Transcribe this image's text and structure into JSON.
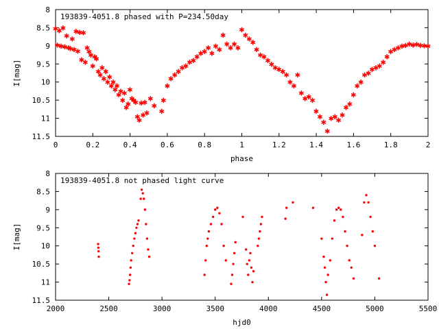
{
  "chart_data": [
    {
      "type": "scatter",
      "title": "193839-4051.8 phased with P=234.50day",
      "xlabel": "phase",
      "ylabel": "I[mag]",
      "xlim": [
        0,
        2
      ],
      "ylim": [
        11.5,
        8
      ],
      "y_inverted": true,
      "xticks": [
        "0",
        "0.2",
        "0.4",
        "0.6",
        "0.8",
        "1",
        "1.2",
        "1.4",
        "1.6",
        "1.8",
        "2"
      ],
      "yticks": [
        "8",
        "8.5",
        "9",
        "9.5",
        "10",
        "10.5",
        "11",
        "11.5"
      ],
      "marker": "star",
      "color": "#ff0000",
      "points": [
        [
          0.0,
          8.52
        ],
        [
          0.01,
          8.97
        ],
        [
          0.02,
          8.58
        ],
        [
          0.03,
          9.0
        ],
        [
          0.04,
          8.5
        ],
        [
          0.05,
          9.02
        ],
        [
          0.06,
          8.72
        ],
        [
          0.07,
          9.05
        ],
        [
          0.08,
          9.07
        ],
        [
          0.09,
          8.8
        ],
        [
          0.1,
          9.1
        ],
        [
          0.11,
          8.6
        ],
        [
          0.12,
          9.14
        ],
        [
          0.13,
          8.62
        ],
        [
          0.14,
          9.38
        ],
        [
          0.15,
          8.63
        ],
        [
          0.16,
          9.45
        ],
        [
          0.17,
          9.05
        ],
        [
          0.18,
          9.15
        ],
        [
          0.19,
          9.25
        ],
        [
          0.2,
          9.55
        ],
        [
          0.21,
          9.3
        ],
        [
          0.22,
          9.35
        ],
        [
          0.23,
          9.7
        ],
        [
          0.24,
          9.8
        ],
        [
          0.25,
          9.6
        ],
        [
          0.26,
          9.9
        ],
        [
          0.27,
          9.7
        ],
        [
          0.28,
          10.0
        ],
        [
          0.29,
          9.85
        ],
        [
          0.3,
          10.1
        ],
        [
          0.31,
          10.0
        ],
        [
          0.32,
          10.2
        ],
        [
          0.33,
          10.1
        ],
        [
          0.34,
          10.35
        ],
        [
          0.35,
          10.25
        ],
        [
          0.36,
          10.5
        ],
        [
          0.37,
          10.3
        ],
        [
          0.38,
          10.7
        ],
        [
          0.39,
          10.6
        ],
        [
          0.4,
          10.2
        ],
        [
          0.41,
          10.45
        ],
        [
          0.42,
          10.5
        ],
        [
          0.43,
          10.55
        ],
        [
          0.44,
          10.95
        ],
        [
          0.45,
          11.05
        ],
        [
          0.46,
          10.57
        ],
        [
          0.47,
          10.9
        ],
        [
          0.48,
          10.55
        ],
        [
          0.49,
          10.85
        ],
        [
          0.51,
          10.45
        ],
        [
          0.53,
          10.65
        ],
        [
          0.57,
          10.8
        ],
        [
          0.58,
          10.5
        ],
        [
          0.6,
          10.1
        ],
        [
          0.62,
          9.9
        ],
        [
          0.64,
          9.8
        ],
        [
          0.66,
          9.7
        ],
        [
          0.68,
          9.6
        ],
        [
          0.7,
          9.55
        ],
        [
          0.72,
          9.45
        ],
        [
          0.74,
          9.4
        ],
        [
          0.76,
          9.3
        ],
        [
          0.78,
          9.2
        ],
        [
          0.8,
          9.15
        ],
        [
          0.82,
          9.05
        ],
        [
          0.84,
          9.2
        ],
        [
          0.86,
          9.0
        ],
        [
          0.88,
          9.1
        ],
        [
          0.9,
          8.7
        ],
        [
          0.92,
          8.95
        ],
        [
          0.94,
          9.05
        ],
        [
          0.96,
          8.95
        ],
        [
          0.98,
          9.05
        ],
        [
          1.0,
          8.55
        ],
        [
          1.02,
          8.7
        ],
        [
          1.04,
          8.8
        ],
        [
          1.06,
          8.9
        ],
        [
          1.08,
          9.1
        ],
        [
          1.1,
          9.25
        ],
        [
          1.12,
          9.3
        ],
        [
          1.14,
          9.4
        ],
        [
          1.16,
          9.5
        ],
        [
          1.18,
          9.6
        ],
        [
          1.2,
          9.65
        ],
        [
          1.22,
          9.7
        ],
        [
          1.24,
          9.8
        ],
        [
          1.26,
          10.0
        ],
        [
          1.28,
          10.1
        ],
        [
          1.3,
          9.8
        ],
        [
          1.32,
          10.3
        ],
        [
          1.34,
          10.45
        ],
        [
          1.36,
          10.4
        ],
        [
          1.38,
          10.5
        ],
        [
          1.4,
          10.8
        ],
        [
          1.42,
          10.95
        ],
        [
          1.44,
          11.1
        ],
        [
          1.46,
          11.35
        ],
        [
          1.48,
          11.0
        ],
        [
          1.5,
          10.95
        ],
        [
          1.52,
          11.05
        ],
        [
          1.54,
          10.9
        ],
        [
          1.56,
          10.7
        ],
        [
          1.58,
          10.6
        ],
        [
          1.6,
          10.35
        ],
        [
          1.62,
          10.1
        ],
        [
          1.64,
          10.0
        ],
        [
          1.66,
          9.8
        ],
        [
          1.68,
          9.75
        ],
        [
          1.7,
          9.65
        ],
        [
          1.72,
          9.6
        ],
        [
          1.74,
          9.55
        ],
        [
          1.76,
          9.45
        ],
        [
          1.78,
          9.3
        ],
        [
          1.8,
          9.15
        ],
        [
          1.82,
          9.1
        ],
        [
          1.84,
          9.05
        ],
        [
          1.86,
          9.0
        ],
        [
          1.88,
          8.98
        ],
        [
          1.9,
          8.95
        ],
        [
          1.92,
          8.97
        ],
        [
          1.94,
          8.96
        ],
        [
          1.96,
          8.98
        ],
        [
          1.98,
          8.99
        ],
        [
          2.0,
          9.0
        ]
      ]
    },
    {
      "type": "scatter",
      "title": "193839-4051.8 not phased light curve",
      "xlabel": "hjd0",
      "ylabel": "I[mag]",
      "xlim": [
        2000,
        5500
      ],
      "ylim": [
        11.5,
        8
      ],
      "y_inverted": true,
      "xticks": [
        "2000",
        "2500",
        "3000",
        "3500",
        "4000",
        "4500",
        "5000",
        "5500"
      ],
      "yticks": [
        "8",
        "8.5",
        "9",
        "9.5",
        "10",
        "10.5",
        "11",
        "11.5"
      ],
      "marker": "dot",
      "color": "#ff0000",
      "points": [
        [
          2400,
          9.95
        ],
        [
          2402,
          10.05
        ],
        [
          2404,
          10.15
        ],
        [
          2406,
          10.3
        ],
        [
          2690,
          11.05
        ],
        [
          2695,
          10.95
        ],
        [
          2700,
          10.8
        ],
        [
          2705,
          10.6
        ],
        [
          2710,
          10.4
        ],
        [
          2720,
          10.2
        ],
        [
          2730,
          10.0
        ],
        [
          2740,
          9.8
        ],
        [
          2750,
          9.65
        ],
        [
          2760,
          9.5
        ],
        [
          2770,
          9.4
        ],
        [
          2780,
          9.3
        ],
        [
          2800,
          8.7
        ],
        [
          2810,
          8.45
        ],
        [
          2820,
          8.55
        ],
        [
          2830,
          8.7
        ],
        [
          2840,
          9.0
        ],
        [
          2850,
          9.4
        ],
        [
          2860,
          9.8
        ],
        [
          2870,
          10.1
        ],
        [
          2880,
          10.3
        ],
        [
          3400,
          10.8
        ],
        [
          3410,
          10.4
        ],
        [
          3420,
          10.0
        ],
        [
          3430,
          9.8
        ],
        [
          3440,
          9.6
        ],
        [
          3460,
          9.4
        ],
        [
          3480,
          9.2
        ],
        [
          3500,
          9.0
        ],
        [
          3520,
          8.95
        ],
        [
          3540,
          9.1
        ],
        [
          3560,
          9.4
        ],
        [
          3580,
          10.0
        ],
        [
          3600,
          10.4
        ],
        [
          3650,
          11.05
        ],
        [
          3660,
          10.8
        ],
        [
          3670,
          10.5
        ],
        [
          3680,
          10.2
        ],
        [
          3690,
          9.9
        ],
        [
          3760,
          9.2
        ],
        [
          3790,
          10.1
        ],
        [
          3800,
          10.5
        ],
        [
          3810,
          10.8
        ],
        [
          3820,
          10.4
        ],
        [
          3830,
          10.2
        ],
        [
          3840,
          10.6
        ],
        [
          3850,
          11.0
        ],
        [
          3860,
          10.7
        ],
        [
          3900,
          10.0
        ],
        [
          3910,
          9.8
        ],
        [
          3920,
          9.6
        ],
        [
          3930,
          9.4
        ],
        [
          3940,
          9.2
        ],
        [
          4160,
          9.25
        ],
        [
          4170,
          8.95
        ],
        [
          4230,
          8.8
        ],
        [
          4420,
          8.95
        ],
        [
          4500,
          9.8
        ],
        [
          4520,
          10.3
        ],
        [
          4530,
          10.6
        ],
        [
          4540,
          11.0
        ],
        [
          4550,
          11.35
        ],
        [
          4560,
          10.8
        ],
        [
          4580,
          10.4
        ],
        [
          4600,
          9.8
        ],
        [
          4620,
          9.3
        ],
        [
          4640,
          9.0
        ],
        [
          4660,
          8.95
        ],
        [
          4680,
          9.0
        ],
        [
          4700,
          9.2
        ],
        [
          4720,
          9.6
        ],
        [
          4740,
          10.0
        ],
        [
          4760,
          10.4
        ],
        [
          4780,
          10.6
        ],
        [
          4800,
          10.9
        ],
        [
          4880,
          9.7
        ],
        [
          4900,
          8.8
        ],
        [
          4920,
          8.6
        ],
        [
          4940,
          8.8
        ],
        [
          4960,
          9.2
        ],
        [
          4980,
          9.6
        ],
        [
          5000,
          10.0
        ],
        [
          5040,
          10.9
        ]
      ]
    }
  ]
}
